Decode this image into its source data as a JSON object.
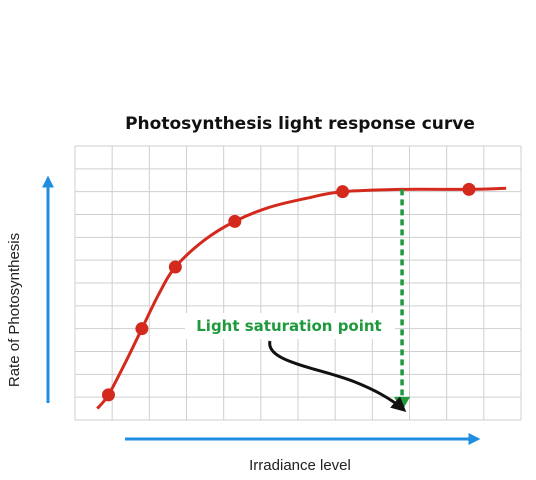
{
  "chart_data": {
    "type": "line",
    "title": "Photosynthesis light response curve",
    "xlabel": "Irradiance level",
    "ylabel": "Rate of Photosynthesis",
    "xlim": [
      0,
      12
    ],
    "ylim": [
      0,
      12
    ],
    "grid": true,
    "legend": "none",
    "series": [
      {
        "values": [
          {
            "x": 0.9,
            "y": 1.1
          },
          {
            "x": 1.8,
            "y": 4.0
          },
          {
            "x": 2.7,
            "y": 6.7
          },
          {
            "x": 4.3,
            "y": 8.7
          },
          {
            "x": 7.2,
            "y": 10.0
          },
          {
            "x": 10.6,
            "y": 10.1
          }
        ]
      }
    ],
    "curve": [
      {
        "x": 0.6,
        "y": 0.5
      },
      {
        "x": 0.9,
        "y": 1.1
      },
      {
        "x": 1.35,
        "y": 2.5
      },
      {
        "x": 1.8,
        "y": 4.0
      },
      {
        "x": 2.25,
        "y": 5.5
      },
      {
        "x": 2.7,
        "y": 6.7
      },
      {
        "x": 3.5,
        "y": 7.9
      },
      {
        "x": 4.3,
        "y": 8.7
      },
      {
        "x": 5.2,
        "y": 9.3
      },
      {
        "x": 6.2,
        "y": 9.7
      },
      {
        "x": 7.2,
        "y": 10.0
      },
      {
        "x": 8.8,
        "y": 10.1
      },
      {
        "x": 10.6,
        "y": 10.1
      },
      {
        "x": 11.6,
        "y": 10.15
      }
    ],
    "annotations": [
      {
        "text": "Light saturation point",
        "x": 8.8,
        "y": 0.4
      }
    ],
    "colors": {
      "curve": "#d42a1e",
      "grid": "#cfcfcf",
      "axis_arrows": "#1f8ee0",
      "saturation": "#1e9a3c",
      "pointer": "#111111"
    }
  }
}
